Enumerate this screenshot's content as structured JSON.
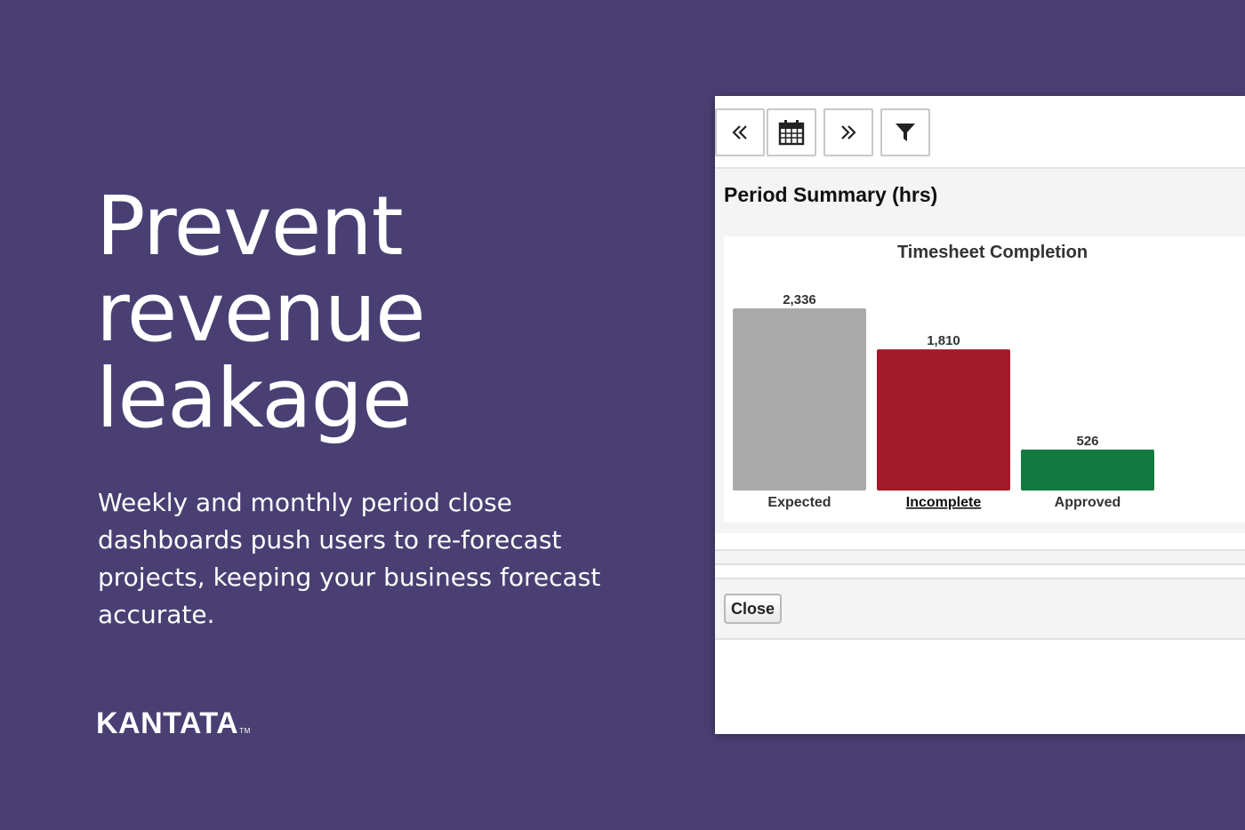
{
  "hero": {
    "headline_lines": [
      "Prevent",
      "revenue",
      "leakage"
    ],
    "body": "Weekly and monthly period close dashboards push users to re-forecast projects, keeping your business forecast accurate."
  },
  "brand": {
    "logo_text": "KANTATA",
    "trademark": "TM"
  },
  "panel": {
    "toolbar": {
      "prev_icon": "double-chevron-left-icon",
      "calendar_icon": "calendar-icon",
      "next_icon": "double-chevron-right-icon",
      "filter_icon": "filter-icon"
    },
    "section_title": "Period Summary (hrs)",
    "close_label": "Close"
  },
  "colors": {
    "background": "#4a3f73",
    "expected": "#aaaaaa",
    "incomplete": "#a21b2a",
    "approved": "#137a3f"
  },
  "chart_data": {
    "type": "bar",
    "title": "Timesheet Completion",
    "categories": [
      "Expected",
      "Incomplete",
      "Approved"
    ],
    "values": [
      2336,
      1810,
      526
    ],
    "value_labels": [
      "2,336",
      "1,810",
      "526"
    ],
    "colors": [
      "#aaaaaa",
      "#a21b2a",
      "#137a3f"
    ],
    "underlined_category": "Incomplete",
    "ylim": [
      0,
      2336
    ],
    "xlabel": "",
    "ylabel": ""
  }
}
